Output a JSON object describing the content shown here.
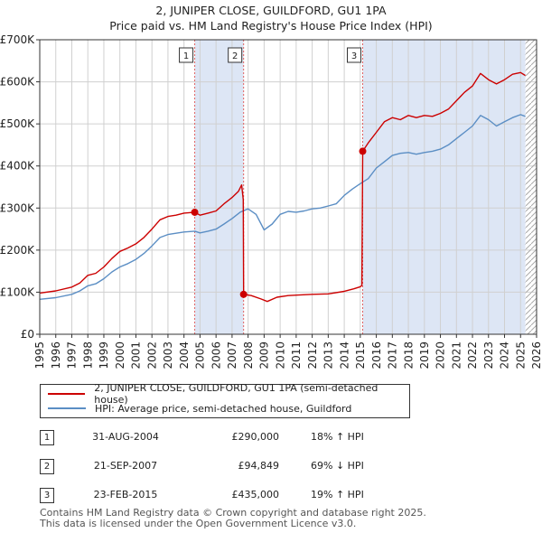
{
  "title": "2, JUNIPER CLOSE, GUILDFORD, GU1 1PA",
  "subtitle": "Price paid vs. HM Land Registry's House Price Index (HPI)",
  "colors": {
    "property": "#cc0000",
    "hpi": "#5b8ec4",
    "shade": "#dde6f5",
    "grid": "#d0d0d0"
  },
  "chart_data": {
    "type": "line",
    "xlim": [
      1995,
      2026
    ],
    "ylim": [
      0,
      700000
    ],
    "yticks": [
      0,
      100000,
      200000,
      300000,
      400000,
      500000,
      600000,
      700000
    ],
    "ytick_labels": [
      "£0",
      "£100K",
      "£200K",
      "£300K",
      "£400K",
      "£500K",
      "£600K",
      "£700K"
    ],
    "xticks": [
      "1995",
      "1996",
      "1997",
      "1998",
      "1999",
      "2000",
      "2001",
      "2002",
      "2003",
      "2004",
      "2005",
      "2006",
      "2007",
      "2008",
      "2009",
      "2010",
      "2011",
      "2012",
      "2013",
      "2014",
      "2015",
      "2016",
      "2017",
      "2018",
      "2019",
      "2020",
      "2021",
      "2022",
      "2023",
      "2024",
      "2025",
      "2026"
    ],
    "shaded_periods": [
      [
        2004.67,
        2007.72
      ],
      [
        2015.15,
        2025.3
      ]
    ],
    "hatch_from": 2025.3,
    "series": [
      {
        "name": "2, JUNIPER CLOSE, GUILDFORD, GU1 1PA (semi-detached house)",
        "color": "#cc0000",
        "points": [
          [
            1995.0,
            98000
          ],
          [
            1996.0,
            103000
          ],
          [
            1997.0,
            112000
          ],
          [
            1997.5,
            122000
          ],
          [
            1998.0,
            140000
          ],
          [
            1998.5,
            145000
          ],
          [
            1999.0,
            160000
          ],
          [
            1999.5,
            180000
          ],
          [
            2000.0,
            197000
          ],
          [
            2000.5,
            205000
          ],
          [
            2001.0,
            215000
          ],
          [
            2001.5,
            230000
          ],
          [
            2002.0,
            250000
          ],
          [
            2002.5,
            272000
          ],
          [
            2003.0,
            280000
          ],
          [
            2003.5,
            283000
          ],
          [
            2004.0,
            288000
          ],
          [
            2004.67,
            290000
          ],
          [
            2005.0,
            283000
          ],
          [
            2005.5,
            288000
          ],
          [
            2006.0,
            293000
          ],
          [
            2006.5,
            310000
          ],
          [
            2007.0,
            325000
          ],
          [
            2007.4,
            340000
          ],
          [
            2007.6,
            355000
          ],
          [
            2007.7,
            320000
          ],
          [
            2007.72,
            94849
          ],
          [
            2008.2,
            92000
          ],
          [
            2008.8,
            84000
          ],
          [
            2009.2,
            78000
          ],
          [
            2009.8,
            88000
          ],
          [
            2010.5,
            92000
          ],
          [
            2011.0,
            93000
          ],
          [
            2012.0,
            95000
          ],
          [
            2013.0,
            96000
          ],
          [
            2014.0,
            102000
          ],
          [
            2014.6,
            108000
          ],
          [
            2015.0,
            113000
          ],
          [
            2015.1,
            116000
          ],
          [
            2015.15,
            435000
          ],
          [
            2015.5,
            455000
          ],
          [
            2016.0,
            480000
          ],
          [
            2016.5,
            505000
          ],
          [
            2017.0,
            515000
          ],
          [
            2017.5,
            510000
          ],
          [
            2018.0,
            520000
          ],
          [
            2018.5,
            515000
          ],
          [
            2019.0,
            520000
          ],
          [
            2019.5,
            518000
          ],
          [
            2020.0,
            525000
          ],
          [
            2020.5,
            535000
          ],
          [
            2021.0,
            555000
          ],
          [
            2021.5,
            575000
          ],
          [
            2022.0,
            590000
          ],
          [
            2022.5,
            620000
          ],
          [
            2023.0,
            605000
          ],
          [
            2023.5,
            595000
          ],
          [
            2024.0,
            605000
          ],
          [
            2024.5,
            618000
          ],
          [
            2025.0,
            622000
          ],
          [
            2025.3,
            615000
          ]
        ]
      },
      {
        "name": "HPI: Average price, semi-detached house, Guildford",
        "color": "#5b8ec4",
        "points": [
          [
            1995.0,
            83000
          ],
          [
            1996.0,
            87000
          ],
          [
            1997.0,
            95000
          ],
          [
            1997.5,
            103000
          ],
          [
            1998.0,
            115000
          ],
          [
            1998.5,
            120000
          ],
          [
            1999.0,
            132000
          ],
          [
            1999.5,
            148000
          ],
          [
            2000.0,
            160000
          ],
          [
            2000.5,
            168000
          ],
          [
            2001.0,
            178000
          ],
          [
            2001.5,
            192000
          ],
          [
            2002.0,
            210000
          ],
          [
            2002.5,
            230000
          ],
          [
            2003.0,
            237000
          ],
          [
            2003.5,
            240000
          ],
          [
            2004.0,
            243000
          ],
          [
            2004.67,
            245000
          ],
          [
            2005.0,
            241000
          ],
          [
            2005.5,
            245000
          ],
          [
            2006.0,
            250000
          ],
          [
            2006.5,
            262000
          ],
          [
            2007.0,
            275000
          ],
          [
            2007.5,
            290000
          ],
          [
            2008.0,
            298000
          ],
          [
            2008.5,
            285000
          ],
          [
            2009.0,
            248000
          ],
          [
            2009.5,
            262000
          ],
          [
            2010.0,
            285000
          ],
          [
            2010.5,
            292000
          ],
          [
            2011.0,
            290000
          ],
          [
            2011.5,
            293000
          ],
          [
            2012.0,
            298000
          ],
          [
            2012.5,
            300000
          ],
          [
            2013.0,
            305000
          ],
          [
            2013.5,
            310000
          ],
          [
            2014.0,
            330000
          ],
          [
            2014.5,
            345000
          ],
          [
            2015.0,
            358000
          ],
          [
            2015.5,
            370000
          ],
          [
            2016.0,
            395000
          ],
          [
            2016.5,
            410000
          ],
          [
            2017.0,
            425000
          ],
          [
            2017.5,
            430000
          ],
          [
            2018.0,
            432000
          ],
          [
            2018.5,
            428000
          ],
          [
            2019.0,
            432000
          ],
          [
            2019.5,
            435000
          ],
          [
            2020.0,
            440000
          ],
          [
            2020.5,
            450000
          ],
          [
            2021.0,
            465000
          ],
          [
            2021.5,
            480000
          ],
          [
            2022.0,
            495000
          ],
          [
            2022.5,
            520000
          ],
          [
            2023.0,
            510000
          ],
          [
            2023.5,
            495000
          ],
          [
            2024.0,
            505000
          ],
          [
            2024.5,
            515000
          ],
          [
            2025.0,
            522000
          ],
          [
            2025.3,
            518000
          ]
        ]
      }
    ],
    "sales": [
      {
        "id": "1",
        "x": 2004.67,
        "price": 290000
      },
      {
        "id": "2",
        "x": 2007.72,
        "price": 94849
      },
      {
        "id": "3",
        "x": 2015.15,
        "price": 435000
      }
    ]
  },
  "legend": {
    "property_label": "2, JUNIPER CLOSE, GUILDFORD, GU1 1PA (semi-detached house)",
    "hpi_label": "HPI: Average price, semi-detached house, Guildford"
  },
  "sales_table": [
    {
      "id": "1",
      "date": "31-AUG-2004",
      "price": "£290,000",
      "hpi": "18% ↑ HPI"
    },
    {
      "id": "2",
      "date": "21-SEP-2007",
      "price": "£94,849",
      "hpi": "69% ↓ HPI"
    },
    {
      "id": "3",
      "date": "23-FEB-2015",
      "price": "£435,000",
      "hpi": "19% ↑ HPI"
    }
  ],
  "footer": {
    "line1": "Contains HM Land Registry data © Crown copyright and database right 2025.",
    "line2": "This data is licensed under the Open Government Licence v3.0."
  }
}
